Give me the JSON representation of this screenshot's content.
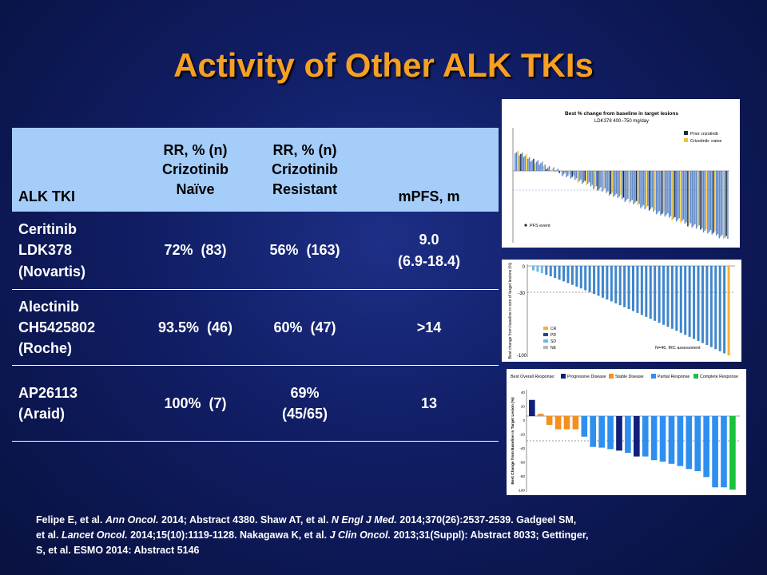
{
  "title": "Activity of Other ALK TKIs",
  "table": {
    "headers": [
      [
        "ALK TKI"
      ],
      [
        "RR, % (n)",
        "Crizotinib",
        "Naïve"
      ],
      [
        "RR, % (n)",
        "Crizotinib",
        "Resistant"
      ],
      [
        "mPFS, m"
      ]
    ],
    "rows": [
      {
        "drug": [
          "Ceritinib",
          "LDK378",
          "(Novartis)"
        ],
        "naive": [
          "72%  (83)"
        ],
        "resistant": [
          "56%  (163)"
        ],
        "mpfs": [
          "9.0",
          "(6.9-18.4)"
        ]
      },
      {
        "drug": [
          "Alectinib",
          "CH5425802",
          "(Roche)"
        ],
        "naive": [
          "93.5%  (46)"
        ],
        "resistant": [
          "60%  (47)"
        ],
        "mpfs": [
          ">14"
        ]
      },
      {
        "drug": [
          "AP26113",
          "(Araid)"
        ],
        "naive": [
          "100%  (7)"
        ],
        "resistant": [
          "69%",
          "(45/65)"
        ],
        "mpfs": [
          "13"
        ]
      }
    ]
  },
  "figures": {
    "ceritinib": {
      "title": "Best % change from baseline in target lesions",
      "subtitle": "LDK378 400–750 mg/day",
      "legend": [
        "Prior crizotinib",
        "Crizotinib- naive"
      ],
      "footnote": "PFS event",
      "colors": {
        "prior": "#1a2a44",
        "naive": "#f0c23a",
        "bar_blue": "#5b86c9"
      }
    },
    "alectinib": {
      "yticks": [
        "0",
        "-30",
        "-100"
      ],
      "ylabel": "Best change from baseline in size of target lesions (%)",
      "legend": [
        "CR",
        "PR",
        "SD",
        "NE"
      ],
      "note": "N=46, IRC assessment",
      "colors": {
        "CR": "#f2b233",
        "PR": "#1c4b94",
        "SD": "#6fb7e6",
        "NE": "#b7b7b7",
        "bar": "#3f86cc"
      }
    },
    "ap26113": {
      "legend_title": "Best Overall Response:",
      "legend": [
        "Progressive Disease",
        "Stable Disease",
        "Partial Response",
        "Complete Response"
      ],
      "colors": {
        "PD": "#10207a",
        "SD": "#f29020",
        "PR": "#2e8ff0",
        "CR": "#19c23a"
      },
      "ylabel": "Best Change from Baseline in Target Lesion (%)",
      "yticks": [
        "40",
        "20",
        "0",
        "-20",
        "-40",
        "-60",
        "-80",
        "-100"
      ]
    }
  },
  "references": {
    "line1_a": "Felipe E, et al. ",
    "line1_b": "Ann Oncol.",
    "line1_c": " 2014; Abstract 4380. Shaw AT, et al. ",
    "line1_d": "N Engl J Med.",
    "line1_e": " 2014;370(26):2537-2539. Gadgeel SM,",
    "line2_a": "et al. ",
    "line2_b": "Lancet Oncol.",
    "line2_c": " 2014;15(10):1119-1128. Nakagawa K, et al. ",
    "line2_d": "J Clin Oncol.",
    "line2_e": " 2013;31(Suppl): Abstract 8033; Gettinger,",
    "line3": "S, et al. ESMO 2014: Abstract 5146"
  }
}
